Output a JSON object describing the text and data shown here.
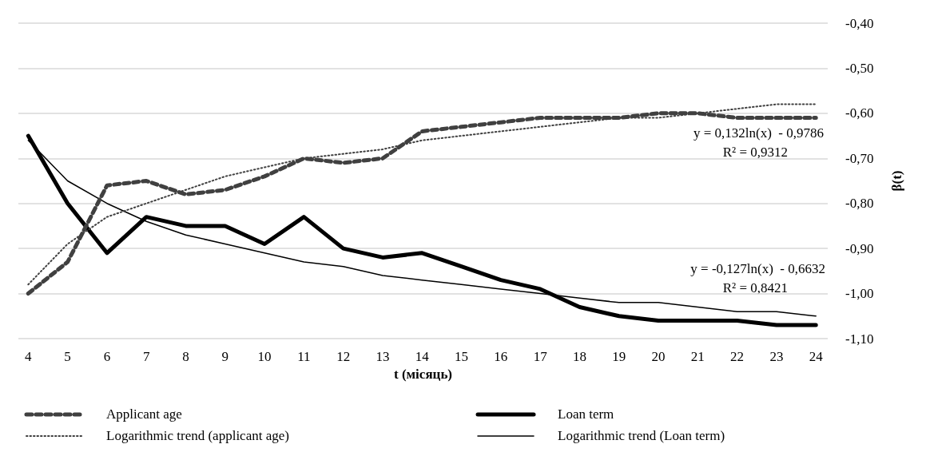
{
  "chart_data": {
    "type": "line",
    "xlabel": "t (місяць)",
    "ylabel": "β(t)",
    "xlim": [
      3.75,
      24.3
    ],
    "xticks": [
      4,
      5,
      6,
      7,
      8,
      9,
      10,
      11,
      12,
      13,
      14,
      15,
      16,
      17,
      18,
      19,
      20,
      21,
      22,
      23,
      24
    ],
    "ylim": [
      -1.1,
      -0.4
    ],
    "yticks": [
      {
        "value": -1.1,
        "label": "-1,10"
      },
      {
        "value": -1.0,
        "label": "-1,00"
      },
      {
        "value": -0.9,
        "label": "-0,90"
      },
      {
        "value": -0.8,
        "label": "-0,80"
      },
      {
        "value": -0.7,
        "label": "-0,70"
      },
      {
        "value": -0.6,
        "label": "-0,60"
      },
      {
        "value": -0.5,
        "label": "-0,50"
      },
      {
        "value": -0.4,
        "label": "-0,40"
      }
    ],
    "grid": "y",
    "legend": "bottom",
    "marker": "none",
    "x": [
      4,
      5,
      6,
      7,
      8,
      9,
      10,
      11,
      12,
      13,
      14,
      15,
      16,
      17,
      18,
      19,
      20,
      21,
      22,
      23,
      24
    ],
    "series": [
      {
        "name": "Applicant age",
        "color": "#404040",
        "line_style": "dashed",
        "values": [
          -1.0,
          -0.93,
          -0.76,
          -0.75,
          -0.78,
          -0.77,
          -0.74,
          -0.7,
          -0.71,
          -0.7,
          -0.64,
          -0.63,
          -0.62,
          -0.61,
          -0.61,
          -0.61,
          -0.6,
          -0.6,
          -0.61,
          -0.61,
          -0.61
        ]
      },
      {
        "name": "Logarithmic trend (applicant age)",
        "color": "#404040",
        "line_style": "dotted",
        "values": [
          -0.98,
          -0.89,
          -0.83,
          -0.8,
          -0.77,
          -0.74,
          -0.72,
          -0.7,
          -0.69,
          -0.68,
          -0.66,
          -0.65,
          -0.64,
          -0.63,
          -0.62,
          -0.61,
          -0.61,
          -0.6,
          -0.59,
          -0.58,
          -0.58
        ]
      },
      {
        "name": "Loan term",
        "color": "#000000",
        "line_style": "solid",
        "values": [
          -0.65,
          -0.8,
          -0.91,
          -0.83,
          -0.85,
          -0.85,
          -0.89,
          -0.83,
          -0.9,
          -0.92,
          -0.91,
          -0.94,
          -0.97,
          -0.99,
          -1.03,
          -1.05,
          -1.06,
          -1.06,
          -1.06,
          -1.07,
          -1.07
        ]
      },
      {
        "name": "Logarithmic trend (Loan term)",
        "color": "#000000",
        "line_style": "solid",
        "values": [
          -0.66,
          -0.75,
          -0.8,
          -0.84,
          -0.87,
          -0.89,
          -0.91,
          -0.93,
          -0.94,
          -0.96,
          -0.97,
          -0.98,
          -0.99,
          -1.0,
          -1.01,
          -1.02,
          -1.02,
          -1.03,
          -1.04,
          -1.04,
          -1.05
        ]
      }
    ],
    "annotations": [
      "y = 0,132ln(x)  - 0,9786",
      "R² = 0,9312",
      "y = -0,127ln(x)  - 0,6632",
      "R² = 0,8421"
    ]
  }
}
